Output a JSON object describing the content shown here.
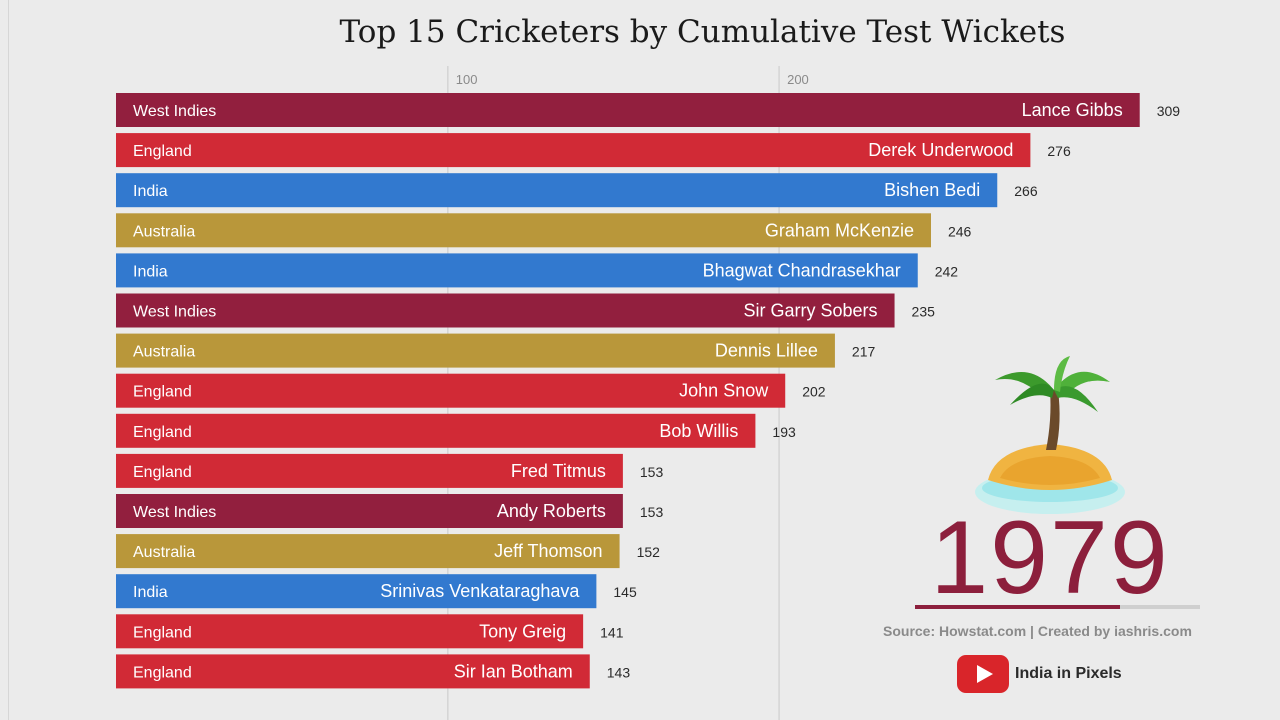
{
  "chart_data": {
    "type": "bar",
    "orientation": "horizontal",
    "title": "Top 15 Cricketers by Cumulative Test Wickets",
    "xlim": [
      0,
      320
    ],
    "ticks": [
      100,
      200
    ],
    "tick_labels": [
      "100",
      "200"
    ],
    "colors": {
      "West Indies": "#921f3e",
      "England": "#d12a36",
      "India": "#3279cf",
      "Australia": "#b9973a"
    },
    "bars": [
      {
        "name": "Lance Gibbs",
        "country": "West Indies",
        "value": 309
      },
      {
        "name": "Derek Underwood",
        "country": "England",
        "value": 276
      },
      {
        "name": "Bishen Bedi",
        "country": "India",
        "value": 266
      },
      {
        "name": "Graham McKenzie",
        "country": "Australia",
        "value": 246
      },
      {
        "name": "Bhagwat Chandrasekhar",
        "country": "India",
        "value": 242
      },
      {
        "name": "Sir Garry Sobers",
        "country": "West Indies",
        "value": 235
      },
      {
        "name": "Dennis Lillee",
        "country": "Australia",
        "value": 217
      },
      {
        "name": "John Snow",
        "country": "England",
        "value": 202
      },
      {
        "name": "Bob Willis",
        "country": "England",
        "value": 193
      },
      {
        "name": "Fred Titmus",
        "country": "England",
        "value": 153
      },
      {
        "name": "Andy Roberts",
        "country": "West Indies",
        "value": 153
      },
      {
        "name": "Jeff Thomson",
        "country": "Australia",
        "value": 152
      },
      {
        "name": "Srinivas Venkataraghava",
        "country": "India",
        "value": 145
      },
      {
        "name": "Tony Greig",
        "country": "England",
        "value": 141
      },
      {
        "name": "Sir Ian Botham",
        "country": "England",
        "value": 143
      }
    ]
  },
  "year": "1979",
  "timeline_progress": 0.72,
  "source": "Source: Howstat.com | Created by iashris.com",
  "channel_name": "India in Pixels",
  "icons": {
    "island": "desert-island-icon",
    "youtube": "youtube-icon"
  }
}
